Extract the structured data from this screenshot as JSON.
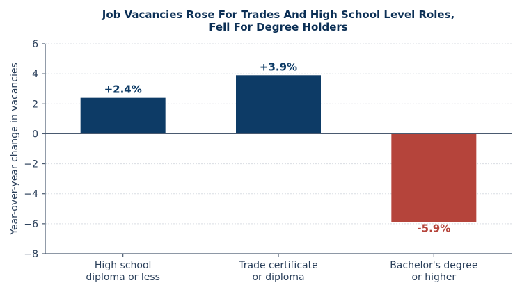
{
  "chart_data": {
    "type": "bar",
    "title_line1": "Job Vacancies Rose For Trades And High School Level Roles,",
    "title_line2": "Fell For Degree Holders",
    "xlabel": "",
    "ylabel": "Year-over-year change in vacancies",
    "categories": [
      [
        "High school",
        "diploma or less"
      ],
      [
        "Trade certificate",
        "or diploma"
      ],
      [
        "Bachelor's degree",
        "or higher"
      ]
    ],
    "values": [
      2.4,
      3.9,
      -5.9
    ],
    "data_labels": [
      "+2.4%",
      "+3.9%",
      "-5.9%"
    ],
    "ylim": [
      -8,
      6
    ],
    "yticks": [
      6,
      4,
      2,
      0,
      -2,
      -4,
      -6,
      -8
    ],
    "ytick_labels": [
      "6",
      "4",
      "2",
      "0",
      "−2",
      "−4",
      "−6",
      "−8"
    ],
    "colors": {
      "positive": "#0d3b66",
      "negative": "#b5443b",
      "title": "#0b2f55"
    },
    "grid": true,
    "legend": "none"
  }
}
